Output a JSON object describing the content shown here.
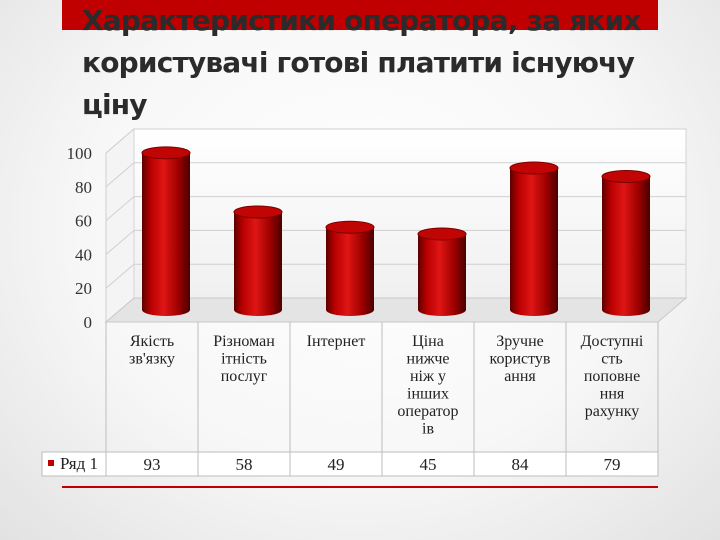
{
  "slide": {
    "title": "Характеристики оператора, за яких користувачі готові платити існуючу ціну",
    "accent_color": "#c00000"
  },
  "chart_data": {
    "type": "bar",
    "bar_style": "3d-cylinder",
    "categories": [
      "Якість зв'язку",
      "Різноманітність послуг",
      "Інтернет",
      "Ціна нижче ніж у інших операторів",
      "Зручне користування",
      "Доступність поповнення рахунку"
    ],
    "category_label_lines": [
      [
        "Якість",
        "зв'язку"
      ],
      [
        "Різноман",
        "ітність",
        "послуг"
      ],
      [
        "Інтернет"
      ],
      [
        "Ціна",
        "нижче",
        "ніж у",
        "інших",
        "оператор",
        "ів"
      ],
      [
        "Зручне",
        "користув",
        "ання"
      ],
      [
        "Доступні",
        "сть",
        "поповне",
        "ння",
        "рахунку"
      ]
    ],
    "series": [
      {
        "name": "Ряд 1",
        "values": [
          93,
          58,
          49,
          45,
          84,
          79
        ],
        "color": "#c00000"
      }
    ],
    "ylim": [
      0,
      100
    ],
    "yticks": [
      0,
      20,
      40,
      60,
      80,
      100
    ],
    "grid": true,
    "data_table": true,
    "legend": "in-table"
  }
}
